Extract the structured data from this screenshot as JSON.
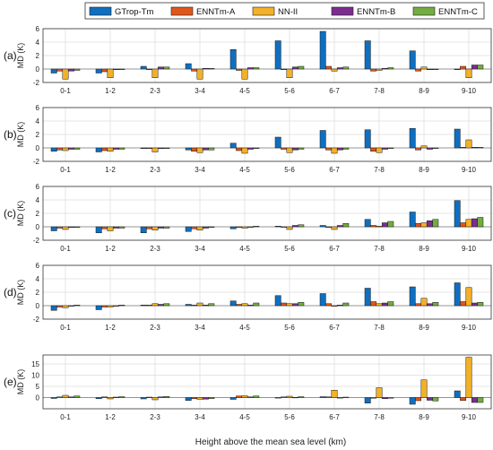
{
  "chart_data": {
    "type": "bar",
    "categories": [
      "0-1",
      "1-2",
      "2-3",
      "3-4",
      "4-5",
      "5-6",
      "6-7",
      "7-8",
      "8-9",
      "9-10"
    ],
    "legend": {
      "placement": "top",
      "entries": [
        "GTrop-Tm",
        "ENNTm-A",
        "NN-II",
        "ENNTm-B",
        "ENNTm-C"
      ]
    },
    "colors": [
      "#0e6fc0",
      "#e0561b",
      "#f2b128",
      "#7b2e8f",
      "#73ac40"
    ],
    "xlabel": "Height above the mean sea level (km)",
    "ylabel": "MD (K)",
    "grid": true,
    "panels": [
      {
        "label": "(a)",
        "ylim": [
          -2,
          6
        ],
        "yticks": [
          -2,
          0,
          2,
          4,
          6
        ],
        "series": [
          {
            "name": "GTrop-Tm",
            "values": [
              -0.6,
              -0.6,
              0.4,
              0.8,
              2.9,
              4.2,
              5.6,
              4.2,
              2.7,
              -0.1
            ]
          },
          {
            "name": "ENNTm-A",
            "values": [
              -0.3,
              -0.4,
              -0.1,
              -0.3,
              -0.2,
              -0.1,
              0.4,
              -0.3,
              -0.3,
              0.4
            ]
          },
          {
            "name": "NN-II",
            "values": [
              -1.5,
              -1.3,
              -1.3,
              -1.5,
              -1.5,
              -1.3,
              -0.3,
              -0.2,
              0.3,
              -1.3
            ]
          },
          {
            "name": "ENNTm-B",
            "values": [
              -0.3,
              -0.1,
              0.3,
              0.1,
              0.2,
              0.3,
              0.2,
              0.1,
              -0.1,
              0.6
            ]
          },
          {
            "name": "ENNTm-C",
            "values": [
              -0.2,
              -0.1,
              0.3,
              0.1,
              0.2,
              0.4,
              0.3,
              0.2,
              -0.1,
              0.6
            ]
          }
        ]
      },
      {
        "label": "(b)",
        "ylim": [
          -2,
          6
        ],
        "yticks": [
          -2,
          0,
          2,
          4,
          6
        ],
        "series": [
          {
            "name": "GTrop-Tm",
            "values": [
              -0.5,
              -0.6,
              -0.1,
              -0.3,
              0.7,
              1.6,
              2.6,
              2.7,
              2.9,
              2.8
            ]
          },
          {
            "name": "ENNTm-A",
            "values": [
              -0.3,
              -0.4,
              -0.1,
              -0.5,
              -0.4,
              -0.2,
              -0.3,
              -0.5,
              -0.3,
              0.1
            ]
          },
          {
            "name": "NN-II",
            "values": [
              -0.4,
              -0.5,
              -0.6,
              -0.7,
              -0.8,
              -0.7,
              -0.8,
              -0.7,
              0.3,
              1.2
            ]
          },
          {
            "name": "ENNTm-B",
            "values": [
              -0.2,
              -0.2,
              -0.1,
              -0.3,
              -0.2,
              -0.3,
              -0.3,
              -0.2,
              -0.2,
              0.1
            ]
          },
          {
            "name": "ENNTm-C",
            "values": [
              -0.2,
              -0.2,
              -0.1,
              -0.3,
              -0.1,
              -0.2,
              -0.2,
              -0.1,
              -0.1,
              0.1
            ]
          }
        ]
      },
      {
        "label": "(c)",
        "ylim": [
          -2,
          6
        ],
        "yticks": [
          -2,
          0,
          2,
          4,
          6
        ],
        "series": [
          {
            "name": "GTrop-Tm",
            "values": [
              -0.6,
              -0.9,
              -0.9,
              -0.7,
              -0.3,
              0.1,
              0.2,
              1.1,
              2.2,
              3.9
            ]
          },
          {
            "name": "ENNTm-A",
            "values": [
              -0.2,
              -0.3,
              -0.3,
              -0.3,
              -0.1,
              0.0,
              -0.1,
              0.2,
              0.5,
              0.6
            ]
          },
          {
            "name": "NN-II",
            "values": [
              -0.4,
              -0.6,
              -0.5,
              -0.5,
              -0.2,
              -0.4,
              -0.4,
              0.1,
              0.6,
              1.1
            ]
          },
          {
            "name": "ENNTm-B",
            "values": [
              -0.1,
              -0.2,
              -0.2,
              -0.2,
              0.0,
              0.2,
              0.2,
              0.6,
              0.9,
              1.2
            ]
          },
          {
            "name": "ENNTm-C",
            "values": [
              -0.1,
              -0.2,
              -0.2,
              -0.1,
              0.1,
              0.3,
              0.5,
              0.8,
              1.1,
              1.4
            ]
          }
        ]
      },
      {
        "label": "(d)",
        "ylim": [
          -2,
          6
        ],
        "yticks": [
          -2,
          0,
          2,
          4,
          6
        ],
        "series": [
          {
            "name": "GTrop-Tm",
            "values": [
              -0.7,
              -0.6,
              0.1,
              0.2,
              0.7,
              1.5,
              1.8,
              2.6,
              2.8,
              3.4
            ]
          },
          {
            "name": "ENNTm-A",
            "values": [
              -0.2,
              -0.2,
              0.1,
              0.1,
              0.2,
              0.4,
              0.3,
              0.6,
              0.3,
              0.6
            ]
          },
          {
            "name": "NN-II",
            "values": [
              -0.3,
              -0.2,
              0.3,
              0.4,
              0.3,
              0.3,
              -0.1,
              0.3,
              1.1,
              2.7
            ]
          },
          {
            "name": "ENNTm-B",
            "values": [
              0.0,
              0.0,
              0.2,
              0.1,
              0.1,
              0.3,
              0.1,
              0.4,
              0.3,
              0.4
            ]
          },
          {
            "name": "ENNTm-C",
            "values": [
              0.1,
              0.1,
              0.3,
              0.3,
              0.4,
              0.5,
              0.4,
              0.6,
              0.5,
              0.5
            ]
          }
        ]
      },
      {
        "label": "(e)",
        "ylim": [
          -5,
          19
        ],
        "yticks": [
          0,
          5,
          10,
          15
        ],
        "series": [
          {
            "name": "GTrop-Tm",
            "values": [
              -0.4,
              -0.5,
              -0.6,
              -1.3,
              -0.8,
              -0.1,
              0.4,
              -2.5,
              -3.0,
              3.0
            ]
          },
          {
            "name": "ENNTm-A",
            "values": [
              0.3,
              0.3,
              0.2,
              -0.5,
              0.7,
              0.3,
              0.3,
              -0.3,
              -1.4,
              -1.3
            ]
          },
          {
            "name": "NN-II",
            "values": [
              1.0,
              -0.6,
              -1.0,
              -0.8,
              0.8,
              0.6,
              3.3,
              4.4,
              7.9,
              18.0
            ]
          },
          {
            "name": "ENNTm-B",
            "values": [
              0.3,
              0.2,
              0.3,
              -0.7,
              0.3,
              0.1,
              -0.1,
              -0.5,
              -1.2,
              -2.2
            ]
          },
          {
            "name": "ENNTm-C",
            "values": [
              0.7,
              0.4,
              0.5,
              -0.5,
              0.7,
              0.4,
              0.2,
              -0.3,
              -1.5,
              -2.2
            ]
          }
        ]
      }
    ]
  }
}
